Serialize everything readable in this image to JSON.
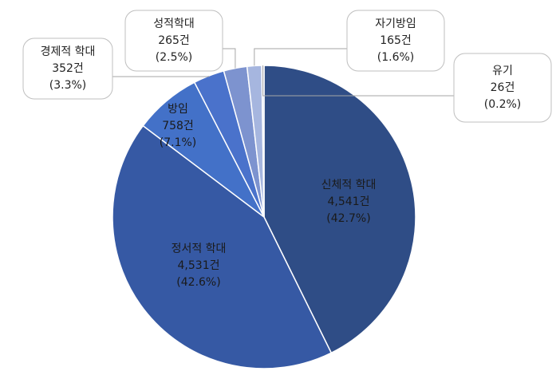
{
  "chart_data": {
    "type": "pie",
    "categories": [
      "신체적 학대",
      "정서적 학대",
      "방임",
      "경제적 학대",
      "성적학대",
      "자기방임",
      "유기"
    ],
    "values": [
      4541,
      4531,
      758,
      352,
      265,
      165,
      26
    ],
    "value_labels": [
      "4,541건",
      "4,531건",
      "758건",
      "352건",
      "265건",
      "165건",
      "26건"
    ],
    "shares": [
      42.7,
      42.6,
      7.1,
      3.3,
      2.5,
      1.6,
      0.2
    ],
    "share_labels": [
      "(42.7%)",
      "(42.6%)",
      "(7.1%)",
      "(3.3%)",
      "(2.5%)",
      "(1.6%)",
      "(0.2%)"
    ],
    "colors": [
      "#2f4d86",
      "#3659a4",
      "#4371c8",
      "#4a72cb",
      "#7d93cf",
      "#a6b6df",
      "#d4dbee"
    ]
  }
}
